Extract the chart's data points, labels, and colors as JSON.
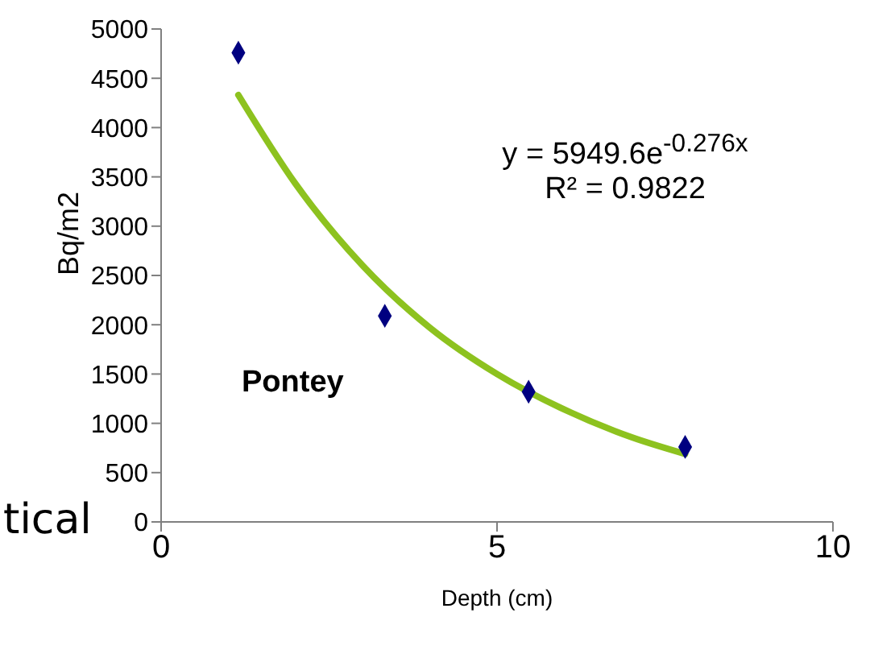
{
  "chart_data": {
    "type": "scatter",
    "xlabel": "Depth (cm)",
    "ylabel": "Bq/m2",
    "xlim": [
      0,
      10
    ],
    "xticks": [
      0,
      5,
      10
    ],
    "ylim": [
      0,
      5000
    ],
    "yticks": [
      0,
      500,
      1000,
      1500,
      2000,
      2500,
      3000,
      3500,
      4000,
      4500,
      5000
    ],
    "marker": "diamond",
    "series": [
      {
        "color": "#000080",
        "x": [
          1.15,
          3.33,
          5.47,
          7.8
        ],
        "values": [
          4760,
          2090,
          1320,
          760
        ]
      },
      {
        "type": "line",
        "color": "#8dc21f",
        "line_style": "solid",
        "marker": "none",
        "x": [
          1.15,
          2,
          3,
          4,
          5,
          6,
          7,
          7.8
        ],
        "values": [
          4330,
          3430,
          2600,
          1970,
          1500,
          1140,
          860,
          690
        ]
      }
    ],
    "annotations": [
      "y = 5949.6e$^{-0.276x}$",
      "R² = 0.9822",
      "Pontey",
      "tical"
    ]
  }
}
